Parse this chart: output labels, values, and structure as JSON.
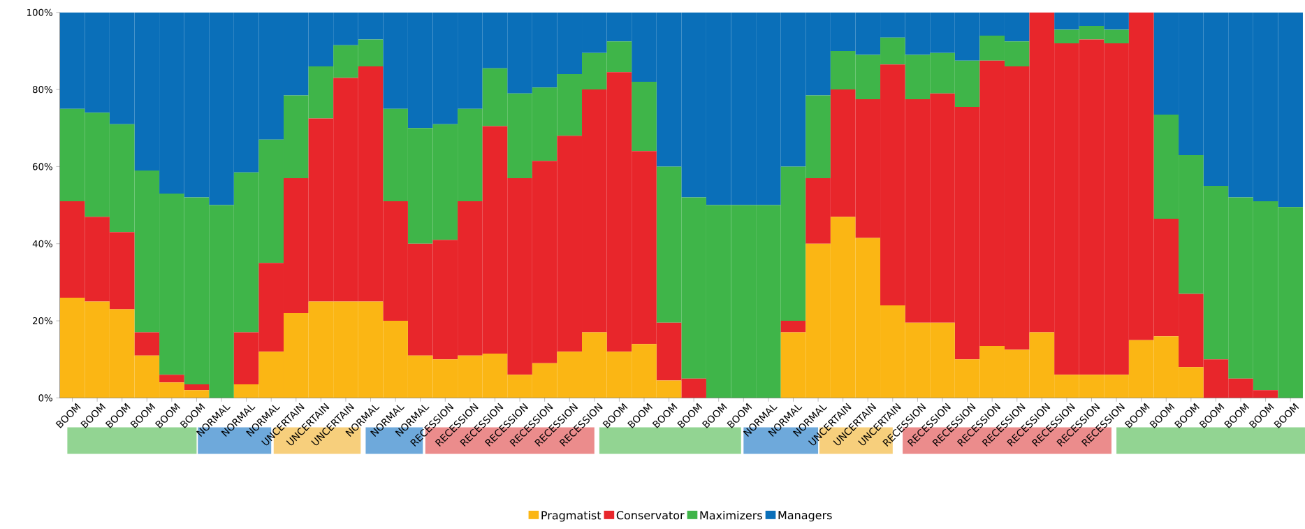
{
  "chart_data": {
    "type": "bar",
    "stacked": true,
    "legend": "bottom",
    "categories": [
      "BOOM",
      "BOOM",
      "BOOM",
      "BOOM",
      "BOOM",
      "BOOM",
      "NORMAL",
      "NORMAL",
      "NORMAL",
      "UNCERTAIN",
      "UNCERTAIN",
      "UNCERTAIN",
      "NORMAL",
      "NORMAL",
      "NORMAL",
      "RECESSION",
      "RECESSION",
      "RECESSION",
      "RECESSION",
      "RECESSION",
      "RECESSION",
      "RECESSION",
      "BOOM",
      "BOOM",
      "BOOM",
      "BOOM",
      "BOOM",
      "BOOM",
      "NORMAL",
      "NORMAL",
      "NORMAL",
      "UNCERTAIN",
      "UNCERTAIN",
      "UNCERTAIN",
      "RECESSION",
      "RECESSION",
      "RECESSION",
      "RECESSION",
      "RECESSION",
      "RECESSION",
      "RECESSION",
      "RECESSION",
      "RECESSION",
      "BOOM",
      "BOOM",
      "BOOM",
      "BOOM",
      "BOOM",
      "BOOM",
      "BOOM"
    ],
    "series": [
      {
        "name": "Pragmatist",
        "color": "#fbb614",
        "values": [
          26,
          25,
          23,
          11,
          4,
          2,
          0,
          3.5,
          12,
          22,
          25,
          25,
          25,
          20,
          11,
          10,
          11,
          11.5,
          6,
          9,
          12,
          17,
          12,
          14,
          4.5,
          0,
          0,
          0,
          0,
          17,
          40,
          47,
          41.5,
          24,
          19.5,
          19.5,
          10,
          13.5,
          12.5,
          17,
          6,
          6,
          6,
          15,
          16,
          8,
          0,
          0,
          0,
          0
        ]
      },
      {
        "name": "Conservator",
        "color": "#e8262b",
        "values": [
          25,
          22,
          20,
          6,
          2,
          1.5,
          0,
          13.5,
          23,
          35,
          47.5,
          58,
          61,
          31,
          29,
          31,
          40,
          59,
          51,
          52.5,
          56,
          63,
          72.5,
          50,
          15,
          5,
          0,
          0,
          0,
          3,
          17,
          33,
          36,
          62.5,
          58,
          59.5,
          65.5,
          74,
          73.5,
          83,
          86,
          87,
          86,
          85,
          30.5,
          19,
          10,
          5,
          2,
          0
        ]
      },
      {
        "name": "Maximizers",
        "color": "#3fb549",
        "values": [
          24,
          27,
          28,
          42,
          47,
          48.5,
          50,
          41.5,
          32,
          21.5,
          13.5,
          8.5,
          7,
          24,
          30,
          30,
          24,
          15,
          22,
          19,
          16,
          9.5,
          8,
          18,
          40.5,
          47,
          50,
          50,
          50,
          40,
          21.5,
          10,
          11.5,
          7,
          11.5,
          10.5,
          12,
          6.5,
          6.5,
          0,
          3.5,
          3.5,
          3.5,
          0,
          27,
          36,
          45,
          47,
          49,
          49.5
        ]
      },
      {
        "name": "Managers",
        "color": "#0a6fb9",
        "values": [
          25,
          26,
          29,
          41,
          47,
          48,
          50,
          41.5,
          33,
          21.5,
          14,
          8.5,
          7,
          25,
          30,
          29,
          25,
          14.5,
          21,
          19.5,
          16,
          10.5,
          7.5,
          18,
          40,
          48,
          50,
          50,
          50,
          40,
          21.5,
          10,
          11,
          6.5,
          11,
          10.5,
          12.5,
          6,
          7.5,
          0,
          4.5,
          3.5,
          4.5,
          0,
          26.5,
          37,
          45,
          48,
          49,
          50.5
        ]
      }
    ],
    "ylim": [
      0,
      100
    ],
    "yticks": [
      {
        "value": 0,
        "label": "0%"
      },
      {
        "value": 20,
        "label": "20%"
      },
      {
        "value": 40,
        "label": "40%"
      },
      {
        "value": 60,
        "label": "60%"
      },
      {
        "value": 80,
        "label": "80%"
      },
      {
        "value": 100,
        "label": "100%"
      }
    ]
  }
}
